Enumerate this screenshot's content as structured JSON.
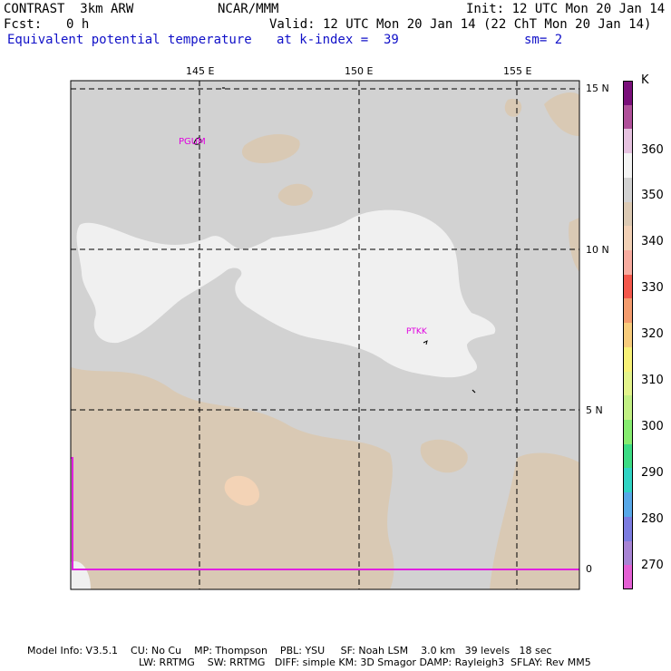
{
  "header": {
    "model": "CONTRAST  3km ARW",
    "org": "NCAR/MMM",
    "init": "Init: 12 UTC Mon 20 Jan 14",
    "fcst_label": "Fcst:",
    "fcst_value": "0 h",
    "valid": "Valid: 12 UTC Mon 20 Jan 14 (22 ChT Mon 20 Jan 14)",
    "field": "Equivalent potential temperature",
    "level": "at k-index =  39",
    "smooth": "sm= 2"
  },
  "map": {
    "lon_labels": [
      "145 E",
      "150 E",
      "155 E"
    ],
    "lat_labels": [
      "15 N",
      "10 N",
      "5 N",
      "0"
    ],
    "stations": [
      "PGUM",
      "PTKK"
    ],
    "colors": {
      "base": "#d2d2d2",
      "light": "#f0f0f0",
      "tan": "#d9c9b4",
      "peach": "#f3d3b6",
      "grid": "#000000",
      "equator": "#e020e0",
      "station": "#e000e0"
    }
  },
  "colorbar": {
    "unit": "K",
    "labels": [
      "360",
      "350",
      "340",
      "330",
      "320",
      "310",
      "300",
      "290",
      "280",
      "270"
    ],
    "swatches": [
      "#7a0f7a",
      "#b0509a",
      "#e6c2e0",
      "#f4f4f4",
      "#d2d2d2",
      "#dccab4",
      "#f2d1b6",
      "#f8aca0",
      "#f4584c",
      "#f49c6e",
      "#f8cc7c",
      "#f8f278",
      "#e4f48c",
      "#c2f084",
      "#86ec70",
      "#3cdc84",
      "#30d4c4",
      "#58a8e8",
      "#7c7ce0",
      "#a884d4",
      "#e460d4"
    ]
  },
  "footer": {
    "line1": "Model Info: V3.5.1    CU: No Cu    MP: Thompson    PBL: YSU     SF: Noah LSM    3.0 km   39 levels   18 sec",
    "line2": "LW: RRTMG    SW: RRTMG   DIFF: simple KM: 3D Smagor DAMP: Rayleigh3  SFLAY: Rev MM5"
  }
}
